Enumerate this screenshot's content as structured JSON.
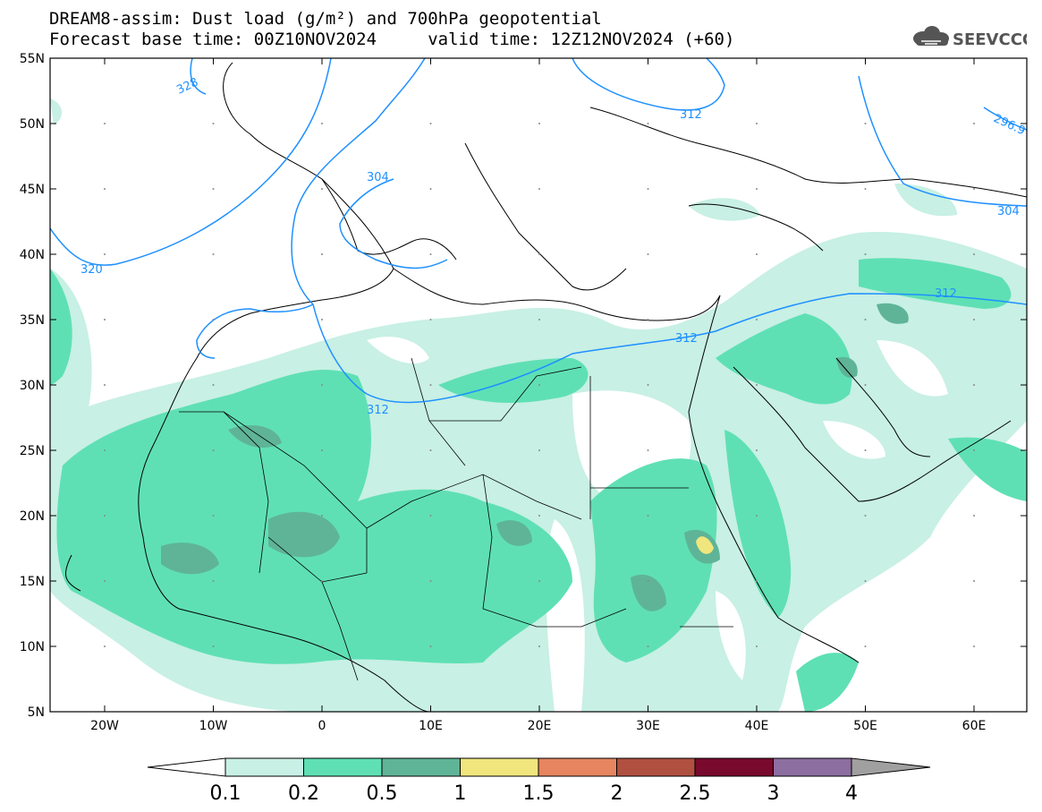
{
  "title": {
    "line1": "DREAM8-assim: Dust load (g/m²) and 700hPa geopotential",
    "line2": "Forecast base time: 00Z10NOV2024     valid time: 12Z12NOV2024 (+60)"
  },
  "logo": {
    "text": "SEEVCCC",
    "icon": "cloud-icon"
  },
  "map": {
    "lat_labels": [
      "55N",
      "50N",
      "45N",
      "40N",
      "35N",
      "30N",
      "25N",
      "20N",
      "15N",
      "10N",
      "5N"
    ],
    "lon_labels": [
      "20W",
      "10W",
      "0",
      "10E",
      "20E",
      "30E",
      "40E",
      "50E",
      "60E"
    ],
    "contour_labels": [
      "328",
      "312",
      "304",
      "320",
      "312",
      "312",
      "312",
      "296.9",
      "304"
    ]
  },
  "colorbar": {
    "ticks": [
      "0.1",
      "0.2",
      "0.5",
      "1",
      "1.5",
      "2",
      "2.5",
      "3",
      "4"
    ],
    "colors": [
      "#c8f0e4",
      "#5fe0b4",
      "#5fb497",
      "#f0e67d",
      "#e6855f",
      "#b05040",
      "#780a2d",
      "#8c6ea0"
    ],
    "under_color": "#ffffff",
    "over_color": "#a0a0a0"
  },
  "colors": {
    "dust_light": "#c8f0e4",
    "dust_mid": "#5fe0b4",
    "dust_dark": "#5fb497",
    "dust_yellow": "#f0e67d",
    "contour": "#1e90ff"
  }
}
